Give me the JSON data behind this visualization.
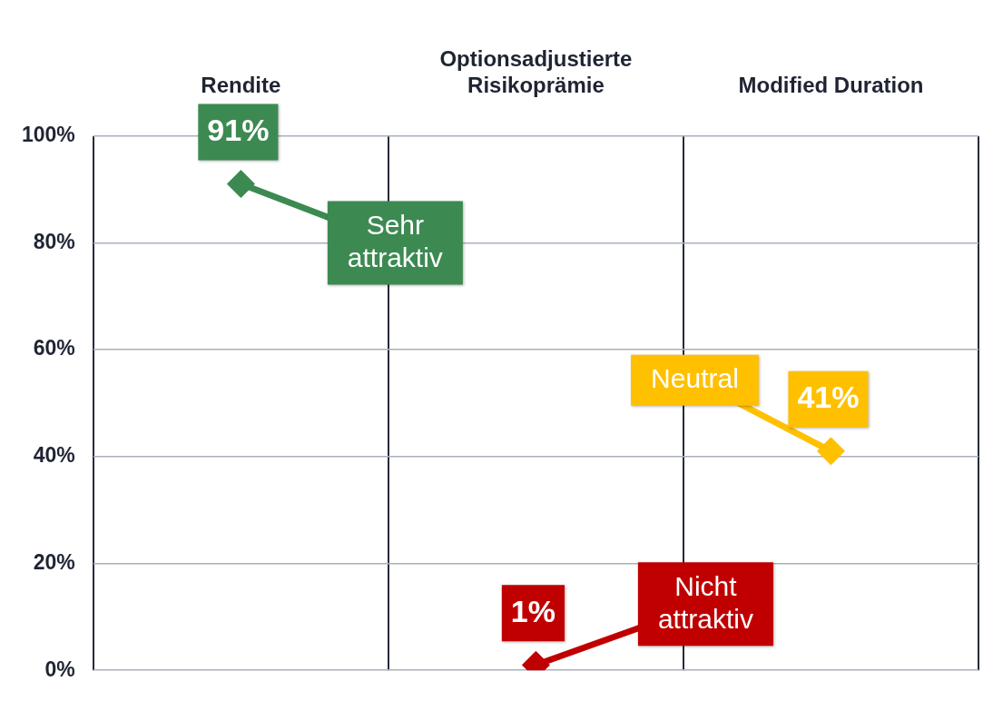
{
  "chart_data": {
    "type": "scatter",
    "categories": [
      "Rendite",
      "Optionsadjustierte Risikoprämie",
      "Modified Duration"
    ],
    "values": [
      91,
      1,
      41
    ],
    "colors": [
      "#3c8a52",
      "#c00000",
      "#ffc000"
    ],
    "value_labels": [
      "91%",
      "1%",
      "41%"
    ],
    "ylim": [
      0,
      100
    ],
    "yticks": [
      {
        "value": 0,
        "label": "0%"
      },
      {
        "value": 20,
        "label": "20%"
      },
      {
        "value": 40,
        "label": "40%"
      },
      {
        "value": 60,
        "label": "60%"
      },
      {
        "value": 80,
        "label": "80%"
      },
      {
        "value": 100,
        "label": "100%"
      }
    ],
    "grid": true,
    "legend": false,
    "marker": "diamond",
    "annotations": [
      {
        "text": "Sehr attraktiv",
        "x": "Rendite",
        "y": 91
      },
      {
        "text": "Nicht attraktiv",
        "x": "Optionsadjustierte Risikoprämie",
        "y": 1
      },
      {
        "text": "Neutral",
        "x": "Modified Duration",
        "y": 41
      }
    ]
  }
}
